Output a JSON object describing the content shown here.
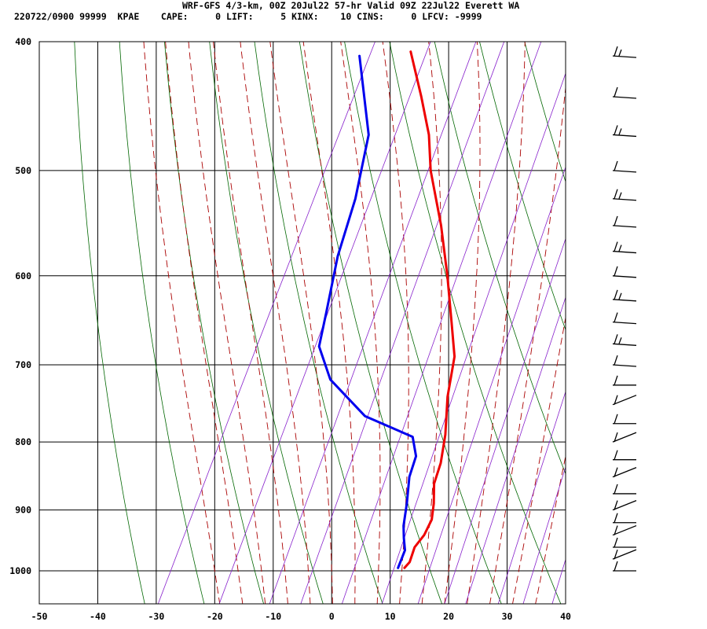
{
  "header": {
    "title": "WRF-GFS 4/3-km, 00Z 20Jul22 57-hr Valid 09Z 22Jul22 Everett WA",
    "stats": "220722/0900 99999  KPAE    CAPE:     0 LIFT:     5 KINX:    10 CINS:     0 LFCV: -9999"
  },
  "chart_data": {
    "type": "line",
    "title": "WRF-GFS 4/3-km, 00Z 20Jul22 57-hr Valid 09Z 22Jul22 Everett WA",
    "xlabel": "",
    "ylabel": "",
    "x_scale": "skew-T temperature (°C)",
    "y_scale": "log pressure (hPa)",
    "xlim": [
      -50,
      40
    ],
    "ylim": [
      1040,
      400
    ],
    "x_ticks": [
      -50,
      -40,
      -30,
      -20,
      -10,
      0,
      10,
      20,
      30,
      40
    ],
    "y_ticks": [
      400,
      500,
      600,
      700,
      800,
      900,
      1000
    ],
    "grid": true,
    "series": [
      {
        "role": "temperature",
        "color": "#ee0000",
        "points": [
          {
            "p": 995,
            "t": 12.2
          },
          {
            "p": 985,
            "t": 12.6
          },
          {
            "p": 960,
            "t": 12.2
          },
          {
            "p": 940,
            "t": 12.8
          },
          {
            "p": 915,
            "t": 12.8
          },
          {
            "p": 890,
            "t": 11.8
          },
          {
            "p": 860,
            "t": 10.2
          },
          {
            "p": 830,
            "t": 9.6
          },
          {
            "p": 790,
            "t": 8.0
          },
          {
            "p": 740,
            "t": 5.2
          },
          {
            "p": 690,
            "t": 3.0
          },
          {
            "p": 650,
            "t": -0.4
          },
          {
            "p": 600,
            "t": -5.0
          },
          {
            "p": 550,
            "t": -10.3
          },
          {
            "p": 500,
            "t": -16.7
          },
          {
            "p": 470,
            "t": -20.0
          },
          {
            "p": 440,
            "t": -24.5
          },
          {
            "p": 407,
            "t": -30.1
          }
        ]
      },
      {
        "role": "dewpoint",
        "color": "#0000ee",
        "points": [
          {
            "p": 995,
            "t": 11.1
          },
          {
            "p": 965,
            "t": 10.8
          },
          {
            "p": 945,
            "t": 9.6
          },
          {
            "p": 925,
            "t": 8.5
          },
          {
            "p": 890,
            "t": 7.2
          },
          {
            "p": 850,
            "t": 5.4
          },
          {
            "p": 820,
            "t": 4.8
          },
          {
            "p": 793,
            "t": 2.6
          },
          {
            "p": 765,
            "t": -7.3
          },
          {
            "p": 718,
            "t": -16.3
          },
          {
            "p": 678,
            "t": -21.0
          },
          {
            "p": 640,
            "t": -22.6
          },
          {
            "p": 580,
            "t": -25.4
          },
          {
            "p": 525,
            "t": -27.2
          },
          {
            "p": 470,
            "t": -30.3
          },
          {
            "p": 410,
            "t": -38.5
          }
        ]
      }
    ],
    "wind_barbs_levels": [
      1000,
      980,
      960,
      940,
      920,
      900,
      875,
      850,
      825,
      800,
      775,
      750,
      725,
      700,
      675,
      650,
      625,
      600,
      575,
      550,
      525,
      500,
      470,
      440,
      410
    ],
    "reference_lines": {
      "isotherm_color": "#000000",
      "dry_adiabat_color": "#006600",
      "moist_adiabat_color": "#aa0000",
      "mixing_ratio_color": "#8822cc"
    }
  }
}
